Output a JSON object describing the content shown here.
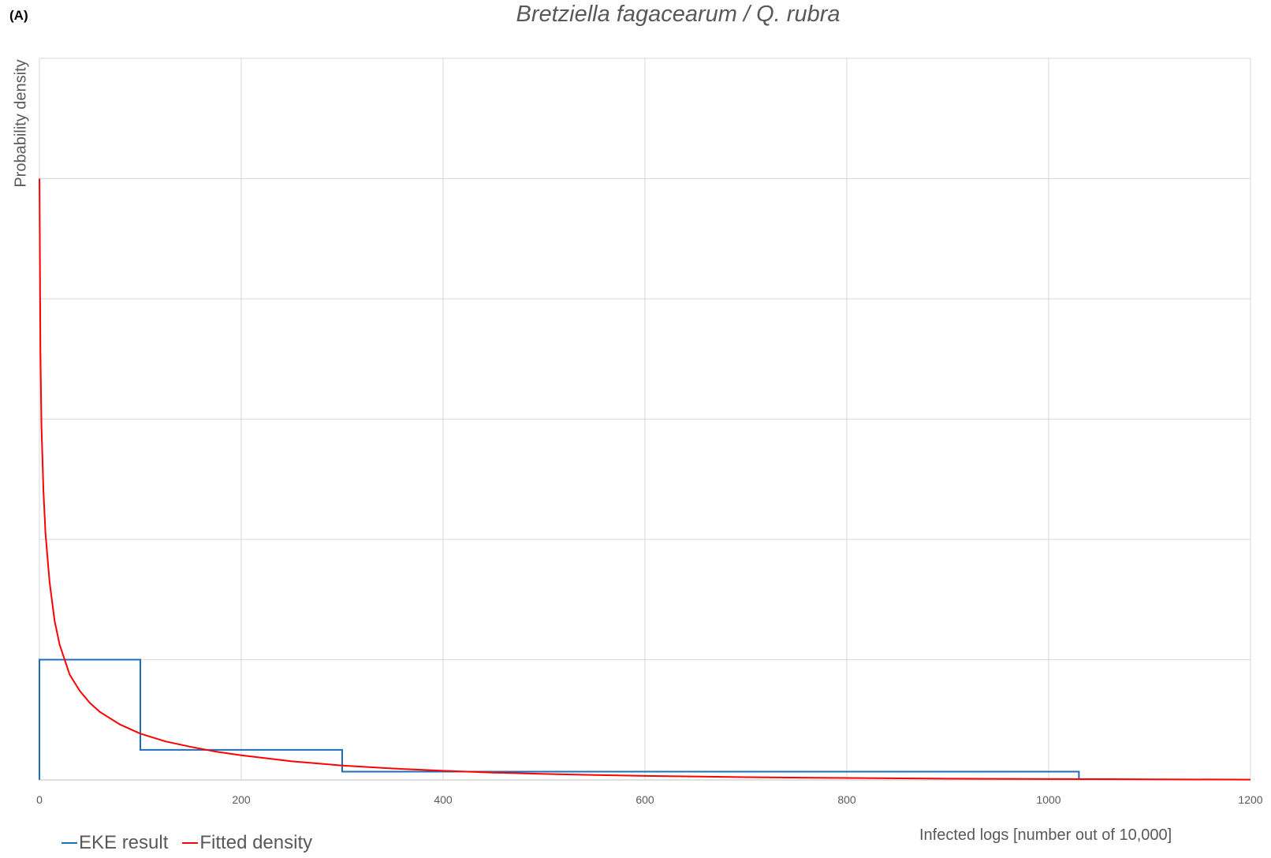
{
  "panel_label": "(A)",
  "chart_data": {
    "type": "line",
    "title": "Bretziella fagacearum / Q. rubra",
    "xlabel": "Infected logs [number out of 10,000]",
    "ylabel": "Probability density",
    "xlim": [
      0,
      1200
    ],
    "x_ticks": [
      "0",
      "200",
      "400",
      "600",
      "800",
      "1000",
      "1200"
    ],
    "y_grid_lines": 6,
    "grid": true,
    "legend_position": "bottom-left",
    "series": [
      {
        "name": "EKE result",
        "type": "step",
        "color": "#1f6fb8",
        "bins": [
          {
            "x0": 0,
            "x1": 100,
            "density": 0.002
          },
          {
            "x0": 100,
            "x1": 300,
            "density": 0.0005
          },
          {
            "x0": 300,
            "x1": 1030,
            "density": 0.000137
          }
        ]
      },
      {
        "name": "Fitted density",
        "type": "line",
        "color": "#ff0000",
        "x": [
          0.05,
          0.5,
          1,
          2,
          4,
          6,
          10,
          15,
          20,
          30,
          40,
          50,
          60,
          80,
          100,
          125,
          150,
          175,
          200,
          250,
          300,
          350,
          400,
          450,
          500,
          550,
          600,
          700,
          800,
          900,
          1000,
          1100,
          1200
        ],
        "y": [
          0.01,
          0.0086,
          0.0071,
          0.0059,
          0.0048,
          0.0041,
          0.0033,
          0.00265,
          0.00225,
          0.00175,
          0.00148,
          0.00128,
          0.00113,
          0.00092,
          0.00077,
          0.00064,
          0.00055,
          0.00047,
          0.00041,
          0.00031,
          0.00024,
          0.00019,
          0.000152,
          0.000122,
          0.0001,
          8.2e-05,
          6.8e-05,
          4.6e-05,
          3.2e-05,
          2.2e-05,
          1.5e-05,
          1e-05,
          5e-06
        ]
      }
    ],
    "ylim": [
      0,
      0.012
    ]
  }
}
